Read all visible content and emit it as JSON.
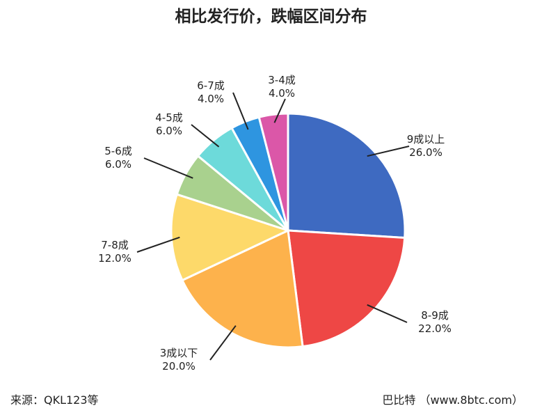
{
  "chart_data": {
    "type": "pie",
    "title": "相比发行价，跌幅区间分布",
    "slices": [
      {
        "label": "9成以上",
        "value": 26.0,
        "pct_text": "26.0%",
        "color": "#3E6AC1"
      },
      {
        "label": "8-9成",
        "value": 22.0,
        "pct_text": "22.0%",
        "color": "#EE4745"
      },
      {
        "label": "3成以下",
        "value": 20.0,
        "pct_text": "20.0%",
        "color": "#FDB24C"
      },
      {
        "label": "7-8成",
        "value": 12.0,
        "pct_text": "12.0%",
        "color": "#FDD96A"
      },
      {
        "label": "5-6成",
        "value": 6.0,
        "pct_text": "6.0%",
        "color": "#A9D18E"
      },
      {
        "label": "4-5成",
        "value": 6.0,
        "pct_text": "6.0%",
        "color": "#6DDADA"
      },
      {
        "label": "6-7成",
        "value": 4.0,
        "pct_text": "4.0%",
        "color": "#2E95E0"
      },
      {
        "label": "3-4成",
        "value": 4.0,
        "pct_text": "4.0%",
        "color": "#DB57A8"
      }
    ]
  },
  "footer": {
    "source": "来源：QKL123等",
    "credit": "巴比特 （www.8btc.com）"
  }
}
